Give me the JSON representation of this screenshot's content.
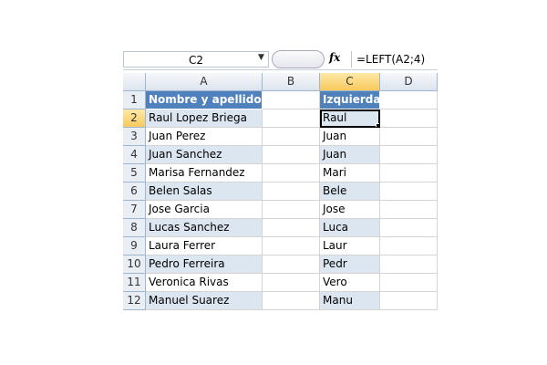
{
  "formula_bar": {
    "name_box": "C2",
    "fx_label": "fx",
    "formula": "=LEFT(A2;4)"
  },
  "columns": [
    "A",
    "B",
    "C",
    "D"
  ],
  "header_row": {
    "row": "1",
    "a": "Nombre y apellido",
    "c": "Izquierda"
  },
  "rows": [
    {
      "row": "2",
      "a": "Raul Lopez Briega",
      "c": "Raul"
    },
    {
      "row": "3",
      "a": "Juan Perez",
      "c": "Juan"
    },
    {
      "row": "4",
      "a": "Juan Sanchez",
      "c": "Juan"
    },
    {
      "row": "5",
      "a": "Marisa Fernandez",
      "c": "Mari"
    },
    {
      "row": "6",
      "a": "Belen Salas",
      "c": "Bele"
    },
    {
      "row": "7",
      "a": "Jose Garcia",
      "c": "Jose"
    },
    {
      "row": "8",
      "a": "Lucas Sanchez",
      "c": "Luca"
    },
    {
      "row": "9",
      "a": "Laura Ferrer",
      "c": "Laur"
    },
    {
      "row": "10",
      "a": "Pedro Ferreira",
      "c": "Pedr"
    },
    {
      "row": "11",
      "a": "Veronica Rivas",
      "c": "Vero"
    },
    {
      "row": "12",
      "a": "Manuel Suarez",
      "c": "Manu"
    }
  ],
  "colors": {
    "header": "#4f81bd",
    "band": "#dce6f1",
    "selection": "#f9c95c"
  }
}
